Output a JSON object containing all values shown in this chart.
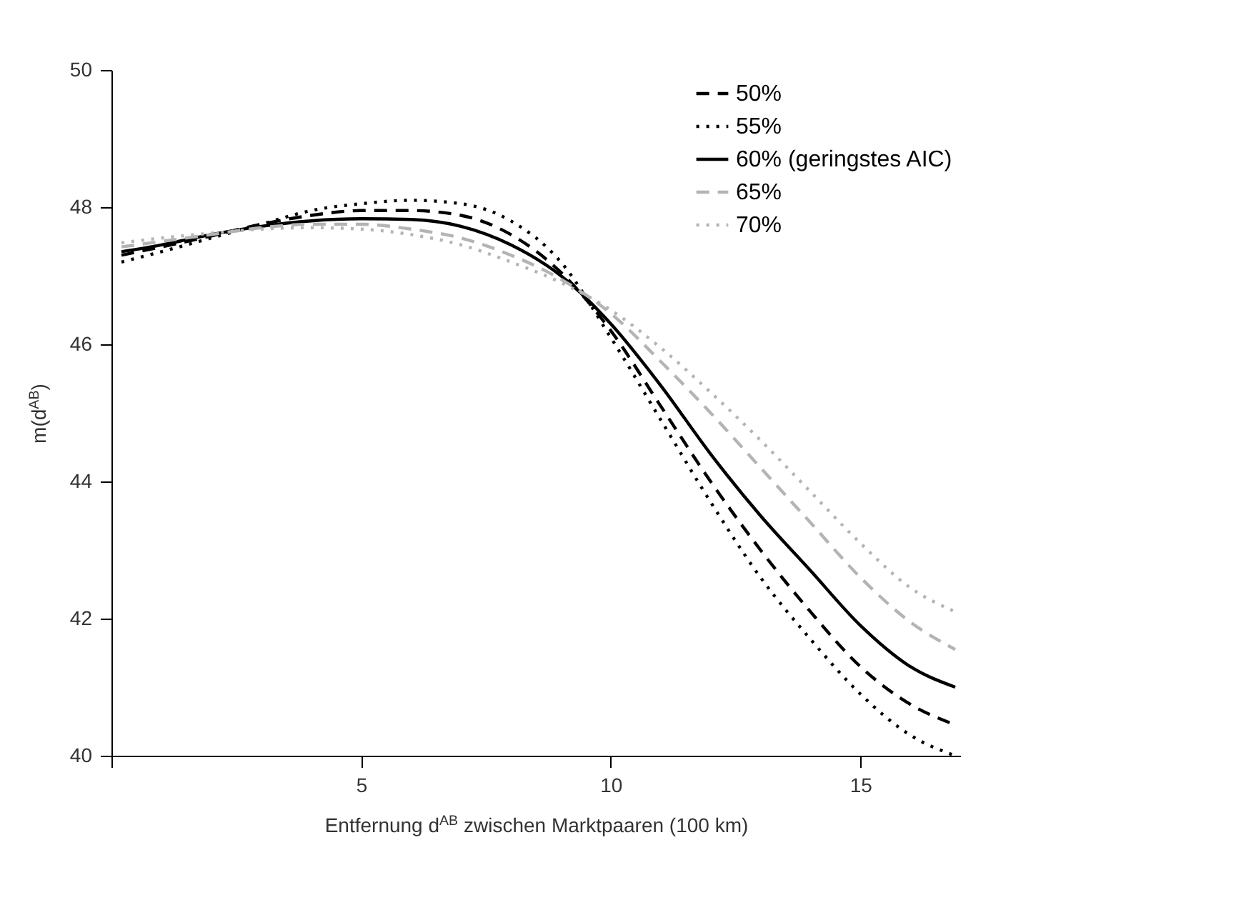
{
  "chart_data": {
    "type": "line",
    "xlabel": "Entfernung d$^{AB}$ zwischen Marktpaaren (100 km)",
    "ylabel": "m(d$^{AB}$)",
    "x": [
      0.2,
      1,
      2,
      3,
      4,
      5,
      6,
      7,
      8,
      9,
      10,
      11,
      12,
      13,
      14,
      15,
      16,
      16.9
    ],
    "xlim": [
      0,
      17
    ],
    "xticks": [
      {
        "value": 0,
        "label": null
      },
      5,
      10,
      15
    ],
    "ylim": [
      40,
      50
    ],
    "yticks": [
      40,
      42,
      44,
      46,
      48,
      50
    ],
    "legend": "top right",
    "series": [
      {
        "name": "50%",
        "color": "#000000",
        "line_style": "dashed",
        "values": [
          47.3,
          47.42,
          47.58,
          47.75,
          47.88,
          47.95,
          47.95,
          47.88,
          47.6,
          47.05,
          46.2,
          45.1,
          44.0,
          43.0,
          42.1,
          41.3,
          40.75,
          40.45
        ]
      },
      {
        "name": "55%",
        "color": "#000000",
        "line_style": "dotted",
        "values": [
          47.2,
          47.35,
          47.55,
          47.75,
          47.95,
          48.05,
          48.1,
          48.05,
          47.8,
          47.2,
          46.1,
          44.9,
          43.7,
          42.6,
          41.7,
          40.9,
          40.3,
          40.0
        ]
      },
      {
        "name": "60% (geringstes AIC)",
        "color": "#000000",
        "line_style": "solid",
        "values": [
          47.35,
          47.45,
          47.6,
          47.72,
          47.8,
          47.83,
          47.82,
          47.72,
          47.45,
          47.0,
          46.3,
          45.4,
          44.4,
          43.5,
          42.7,
          41.9,
          41.3,
          41.0
        ]
      },
      {
        "name": "65%",
        "color": "#b4b4b4",
        "line_style": "dashed",
        "values": [
          47.42,
          47.5,
          47.6,
          47.7,
          47.75,
          47.75,
          47.68,
          47.55,
          47.3,
          46.95,
          46.45,
          45.75,
          45.0,
          44.2,
          43.4,
          42.6,
          41.95,
          41.55
        ]
      },
      {
        "name": "70%",
        "color": "#b4b4b4",
        "line_style": "dotted",
        "values": [
          47.48,
          47.55,
          47.62,
          47.68,
          47.7,
          47.68,
          47.6,
          47.45,
          47.2,
          46.9,
          46.5,
          45.95,
          45.3,
          44.6,
          43.85,
          43.1,
          42.45,
          42.1
        ]
      }
    ]
  }
}
